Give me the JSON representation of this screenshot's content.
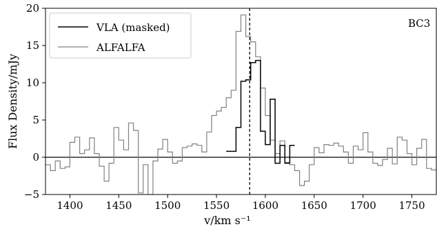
{
  "chart_data": {
    "type": "line",
    "title": "",
    "annotation": "BC3",
    "xlabel": "v/km s⁻¹",
    "ylabel": "Flux Density/mJy",
    "xlim": [
      1375,
      1775
    ],
    "ylim": [
      -5,
      20
    ],
    "xticks": [
      1400,
      1450,
      1500,
      1550,
      1600,
      1650,
      1700,
      1750
    ],
    "yticks": [
      -5,
      0,
      5,
      10,
      15,
      20
    ],
    "legend_position": "top-left",
    "grid": false,
    "vline_x": 1584,
    "hline_y": 0,
    "colors": {
      "vla": "#000000",
      "alfalfa": "#808080"
    },
    "series": [
      {
        "name": "VLA (masked)",
        "color": "#000000",
        "step_edges": [
          1560,
          1565,
          1570,
          1575,
          1580,
          1585,
          1590,
          1595,
          1600,
          1605,
          1610,
          1615,
          1620,
          1625,
          1630
        ],
        "values": [
          0.8,
          0.8,
          4.0,
          10.2,
          10.4,
          12.7,
          13.0,
          3.5,
          1.7,
          7.8,
          -0.8,
          1.6,
          -0.8,
          1.6
        ]
      },
      {
        "name": "ALFALFA",
        "color": "#808080",
        "step_edges": [
          1375,
          1380,
          1385,
          1390,
          1395,
          1400,
          1405,
          1410,
          1415,
          1420,
          1425,
          1430,
          1435,
          1440,
          1445,
          1450,
          1455,
          1460,
          1465,
          1470,
          1475,
          1480,
          1485,
          1490,
          1495,
          1500,
          1505,
          1510,
          1515,
          1520,
          1525,
          1530,
          1535,
          1540,
          1545,
          1550,
          1555,
          1560,
          1565,
          1570,
          1575,
          1580,
          1585,
          1590,
          1595,
          1600,
          1605,
          1610,
          1615,
          1620,
          1625,
          1630,
          1635,
          1640,
          1645,
          1650,
          1655,
          1660,
          1665,
          1670,
          1675,
          1680,
          1685,
          1690,
          1695,
          1700,
          1705,
          1710,
          1715,
          1720,
          1725,
          1730,
          1735,
          1740,
          1745,
          1750,
          1755,
          1760,
          1765,
          1770,
          1775
        ],
        "values": [
          -1.0,
          -1.8,
          -0.5,
          -1.5,
          -1.3,
          2.0,
          2.7,
          0.5,
          1.0,
          2.6,
          0.5,
          -1.2,
          -3.2,
          -0.8,
          4.0,
          2.3,
          1.0,
          4.6,
          3.6,
          -4.8,
          -1.0,
          -5.0,
          -0.5,
          1.1,
          2.4,
          0.7,
          -0.8,
          -0.5,
          1.3,
          1.5,
          1.8,
          1.6,
          0.7,
          3.4,
          5.6,
          6.2,
          6.7,
          8.0,
          9.0,
          16.9,
          19.1,
          16.2,
          15.5,
          13.5,
          9.3,
          5.6,
          2.3,
          0.5,
          2.2,
          -0.7,
          -1.0,
          -1.8,
          -3.8,
          -3.2,
          -1.0,
          1.3,
          0.6,
          1.7,
          1.6,
          1.9,
          1.5,
          0.7,
          -0.8,
          1.5,
          1.0,
          3.3,
          0.7,
          -0.8,
          -1.1,
          -0.3,
          1.2,
          -0.9,
          2.7,
          2.3,
          0.5,
          -1.0,
          1.2,
          2.4,
          -1.5,
          -1.7
        ]
      }
    ]
  }
}
